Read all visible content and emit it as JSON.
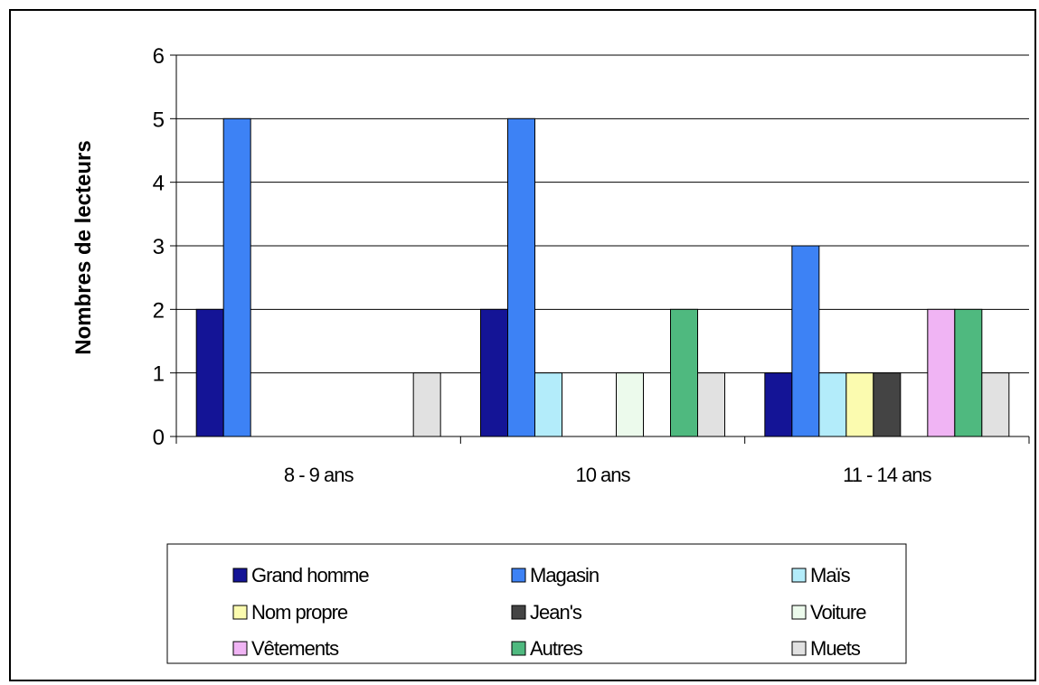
{
  "chart_data": {
    "type": "bar",
    "ylabel": "Nombres de lecteurs",
    "xlabel": "",
    "ylim": [
      0,
      6
    ],
    "yticks": [
      0,
      1,
      2,
      3,
      4,
      5,
      6
    ],
    "grid": true,
    "legend_position": "bottom",
    "categories": [
      "8 - 9 ans",
      "10 ans",
      "11 - 14 ans"
    ],
    "series": [
      {
        "name": "Grand homme",
        "color": "#141496",
        "values": [
          2,
          2,
          1
        ]
      },
      {
        "name": "Magasin",
        "color": "#3d82f5",
        "values": [
          5,
          5,
          3
        ]
      },
      {
        "name": "Maïs",
        "color": "#b3ecfa",
        "values": [
          0,
          1,
          1
        ]
      },
      {
        "name": "Nom propre",
        "color": "#fbfbaf",
        "values": [
          0,
          0,
          1
        ]
      },
      {
        "name": "Jean's",
        "color": "#444444",
        "values": [
          0,
          0,
          1
        ]
      },
      {
        "name": "Voiture",
        "color": "#ecfaec",
        "values": [
          0,
          1,
          0
        ]
      },
      {
        "name": "Vêtements",
        "color": "#f0b4f4",
        "values": [
          0,
          0,
          2
        ]
      },
      {
        "name": "Autres",
        "color": "#4fb97f",
        "values": [
          0,
          2,
          2
        ]
      },
      {
        "name": "Muets",
        "color": "#e1e1e1",
        "values": [
          1,
          1,
          1
        ]
      }
    ]
  }
}
